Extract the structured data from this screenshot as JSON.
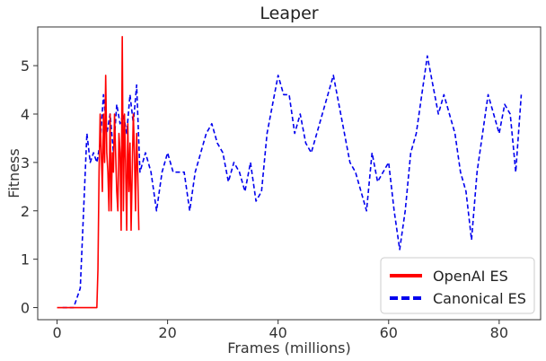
{
  "colors": {
    "openai": "#ff0000",
    "canonical": "#0000ee",
    "axes": "#333333",
    "legend_border": "#cccccc"
  },
  "chart_data": {
    "type": "line",
    "title": "Leaper",
    "xlabel": "Frames (millions)",
    "ylabel": "Fitness",
    "xlim": [
      -3.5,
      87.5
    ],
    "ylim": [
      -0.25,
      5.8
    ],
    "xticks": [
      0,
      20,
      40,
      60,
      80
    ],
    "yticks": [
      0,
      1,
      2,
      3,
      4,
      5
    ],
    "grid": false,
    "legend_position": "lower-right",
    "series": [
      {
        "name": "OpenAI ES",
        "style": "solid",
        "x": [
          0,
          3,
          6,
          7.2,
          7.4,
          7.6,
          7.8,
          8.0,
          8.2,
          8.4,
          8.6,
          8.8,
          9.0,
          9.2,
          9.4,
          9.6,
          9.8,
          10.0,
          10.2,
          10.4,
          10.6,
          10.8,
          11.0,
          11.2,
          11.4,
          11.6,
          11.8,
          12.0,
          12.2,
          12.4,
          12.6,
          12.8,
          13.0,
          13.2,
          13.4,
          13.6,
          13.8,
          14.0,
          14.2,
          14.4,
          14.6,
          14.8
        ],
        "y": [
          0,
          0,
          0,
          0,
          0.8,
          2.8,
          4.0,
          3.2,
          2.4,
          4.0,
          3.0,
          4.8,
          3.2,
          2.8,
          2.0,
          4.0,
          2.0,
          3.2,
          2.8,
          4.0,
          3.2,
          2.4,
          2.0,
          3.6,
          3.2,
          1.6,
          5.6,
          2.0,
          4.0,
          3.0,
          1.6,
          3.8,
          2.4,
          3.4,
          1.6,
          2.8,
          4.0,
          3.2,
          2.0,
          3.6,
          2.8,
          1.6
        ]
      },
      {
        "name": "Canonical ES",
        "style": "dashed",
        "x": [
          1,
          3,
          4.2,
          4.8,
          5.4,
          6.0,
          6.6,
          7.2,
          7.8,
          8.4,
          9.0,
          9.6,
          10.2,
          10.8,
          11.4,
          12.0,
          12.6,
          13.2,
          13.8,
          14.4,
          15.0,
          16.0,
          17.0,
          18.0,
          19.0,
          20.0,
          21.0,
          22.0,
          23.0,
          24.0,
          25.0,
          26.0,
          27.0,
          28.0,
          29.0,
          30.0,
          31.0,
          32.0,
          33.0,
          34.0,
          35.0,
          36.0,
          37.0,
          38.0,
          39.0,
          40.0,
          41.0,
          42.0,
          43.0,
          44.0,
          45.0,
          46.0,
          47.0,
          48.0,
          49.0,
          50.0,
          51.0,
          52.0,
          53.0,
          54.0,
          55.0,
          56.0,
          57.0,
          58.0,
          59.0,
          60.0,
          61.0,
          62.0,
          63.0,
          64.0,
          65.0,
          66.0,
          67.0,
          68.0,
          69.0,
          70.0,
          71.0,
          72.0,
          73.0,
          74.0,
          75.0,
          76.0,
          77.0,
          78.0,
          79.0,
          80.0,
          81.0,
          82.0,
          83.0,
          84.0
        ],
        "y": [
          0,
          0,
          0.4,
          2.0,
          3.6,
          3.0,
          3.2,
          3.0,
          3.4,
          4.4,
          3.6,
          4.0,
          3.2,
          4.2,
          3.8,
          4.0,
          3.6,
          4.4,
          3.8,
          4.6,
          2.8,
          3.2,
          2.8,
          2.0,
          2.8,
          3.2,
          2.8,
          2.8,
          2.8,
          2.0,
          2.8,
          3.2,
          3.6,
          3.8,
          3.4,
          3.2,
          2.6,
          3.0,
          2.8,
          2.4,
          3.0,
          2.2,
          2.4,
          3.6,
          4.2,
          4.8,
          4.4,
          4.4,
          3.6,
          4.0,
          3.4,
          3.2,
          3.6,
          4.0,
          4.4,
          4.8,
          4.2,
          3.6,
          3.0,
          2.8,
          2.4,
          2.0,
          3.2,
          2.6,
          2.8,
          3.0,
          2.0,
          1.2,
          2.0,
          3.2,
          3.6,
          4.4,
          5.2,
          4.6,
          4.0,
          4.4,
          4.0,
          3.6,
          2.8,
          2.4,
          1.4,
          2.8,
          3.6,
          4.4,
          4.0,
          3.6,
          4.2,
          4.0,
          2.8,
          4.4
        ]
      }
    ]
  }
}
